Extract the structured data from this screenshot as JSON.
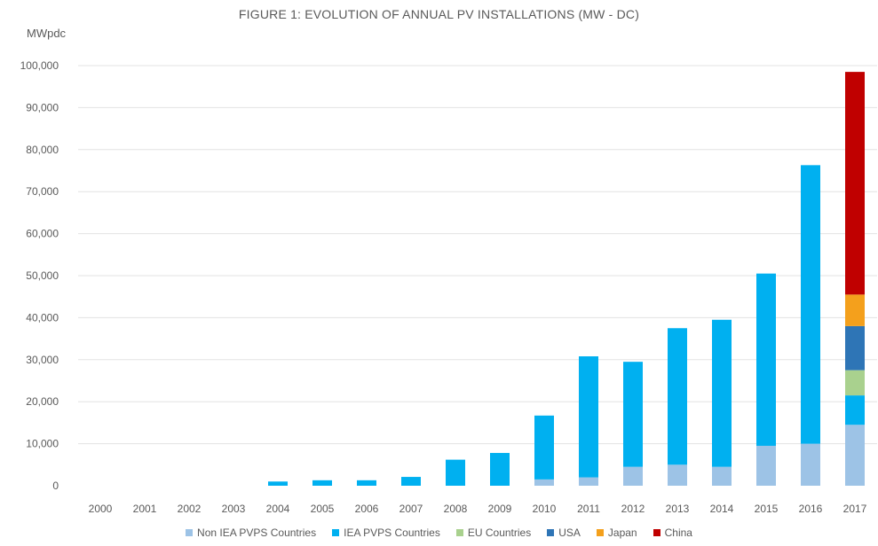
{
  "chart_data": {
    "type": "bar",
    "stacked": true,
    "title": "FIGURE 1: EVOLUTION OF ANNUAL PV INSTALLATIONS (MW - DC)",
    "ylabel": "MWpdc",
    "xlabel": "",
    "ylim": [
      0,
      100000
    ],
    "yticks": [
      "0",
      "10,000",
      "20,000",
      "30,000",
      "40,000",
      "50,000",
      "60,000",
      "70,000",
      "80,000",
      "90,000",
      "100,000"
    ],
    "grid": true,
    "legend_position": "bottom",
    "categories": [
      "2000",
      "2001",
      "2002",
      "2003",
      "2004",
      "2005",
      "2006",
      "2007",
      "2008",
      "2009",
      "2010",
      "2011",
      "2012",
      "2013",
      "2014",
      "2015",
      "2016",
      "2017"
    ],
    "series": [
      {
        "name": "Non IEA PVPS Countries",
        "color": "#9dc3e6",
        "values": [
          0,
          0,
          0,
          0,
          0,
          0,
          0,
          0,
          0,
          0,
          1500,
          2000,
          4500,
          5000,
          4500,
          9500,
          10000,
          14500
        ]
      },
      {
        "name": "IEA PVPS Countries",
        "color": "#00b0f0",
        "values": [
          0,
          0,
          0,
          0,
          1000,
          1300,
          1300,
          2100,
          6200,
          7800,
          15200,
          28800,
          25000,
          32500,
          35000,
          41000,
          66300,
          7000
        ]
      },
      {
        "name": "EU Countries",
        "color": "#a9d18e",
        "values": [
          0,
          0,
          0,
          0,
          0,
          0,
          0,
          0,
          0,
          0,
          0,
          0,
          0,
          0,
          0,
          0,
          0,
          6000
        ]
      },
      {
        "name": "USA",
        "color": "#2e75b6",
        "values": [
          0,
          0,
          0,
          0,
          0,
          0,
          0,
          0,
          0,
          0,
          0,
          0,
          0,
          0,
          0,
          0,
          0,
          10500
        ]
      },
      {
        "name": "Japan",
        "color": "#f4a01c",
        "values": [
          0,
          0,
          0,
          0,
          0,
          0,
          0,
          0,
          0,
          0,
          0,
          0,
          0,
          0,
          0,
          0,
          0,
          7500
        ]
      },
      {
        "name": "China",
        "color": "#c00000",
        "values": [
          0,
          0,
          0,
          0,
          0,
          0,
          0,
          0,
          0,
          0,
          0,
          0,
          0,
          0,
          0,
          0,
          0,
          53000
        ]
      }
    ]
  }
}
